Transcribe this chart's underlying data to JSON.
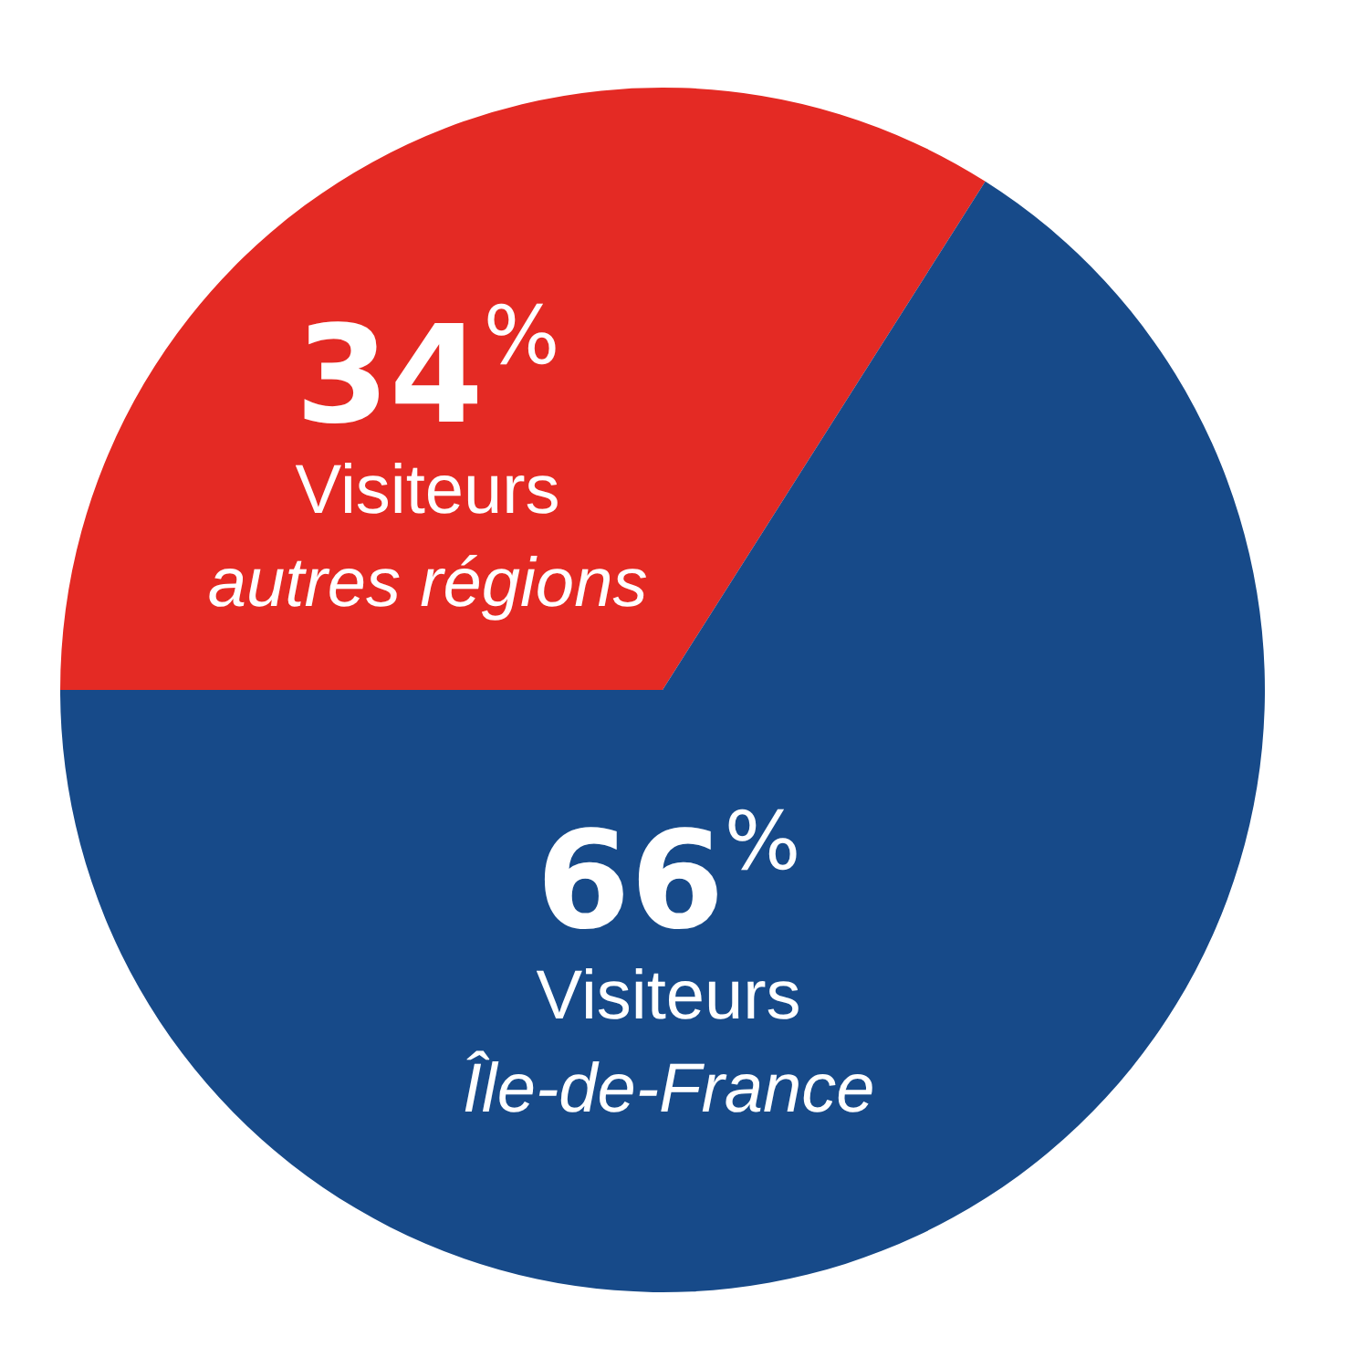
{
  "chart_data": {
    "type": "pie",
    "categories": [
      "Visiteurs autres régions",
      "Visiteurs Île-de-France"
    ],
    "values": [
      34,
      66
    ],
    "colors": [
      "#e42a24",
      "#174a89"
    ],
    "value_labels": [
      "34$^{%}$",
      "66$^{%}$"
    ]
  }
}
